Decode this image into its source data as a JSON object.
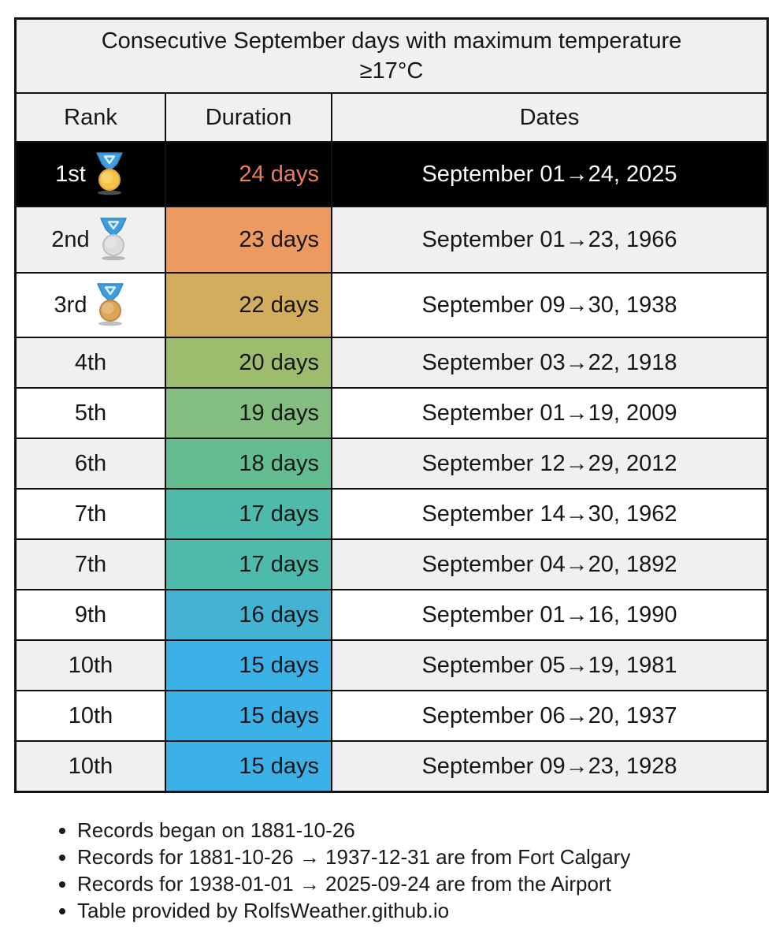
{
  "chart_data": {
    "type": "table",
    "title": "Consecutive September days with maximum temperature ≥17°C",
    "title_lines": [
      "Consecutive September days with maximum temperature",
      "≥17°C"
    ],
    "columns": [
      "Rank",
      "Duration",
      "Dates"
    ],
    "rows": [
      {
        "rank": "1st",
        "medal": "gold",
        "duration": "24 days",
        "duration_days": 24,
        "dates": "September 01→24, 2025",
        "highlight": true,
        "duration_bg": null,
        "duration_text_color": "#ee7b5b"
      },
      {
        "rank": "2nd",
        "medal": "silver",
        "duration": "23 days",
        "duration_days": 23,
        "dates": "September 01→23, 1966",
        "highlight": false,
        "duration_bg": "#ec9a60",
        "duration_text_color": null
      },
      {
        "rank": "3rd",
        "medal": "bronze",
        "duration": "22 days",
        "duration_days": 22,
        "dates": "September 09→30, 1938",
        "highlight": false,
        "duration_bg": "#d2ad5e",
        "duration_text_color": null
      },
      {
        "rank": "4th",
        "medal": null,
        "duration": "20 days",
        "duration_days": 20,
        "dates": "September 03→22, 1918",
        "highlight": false,
        "duration_bg": "#9ebc6e",
        "duration_text_color": null
      },
      {
        "rank": "5th",
        "medal": null,
        "duration": "19 days",
        "duration_days": 19,
        "dates": "September 01→19, 2009",
        "highlight": false,
        "duration_bg": "#84bd80",
        "duration_text_color": null
      },
      {
        "rank": "6th",
        "medal": null,
        "duration": "18 days",
        "duration_days": 18,
        "dates": "September 12→29, 2012",
        "highlight": false,
        "duration_bg": "#63bd90",
        "duration_text_color": null
      },
      {
        "rank": "7th",
        "medal": null,
        "duration": "17 days",
        "duration_days": 17,
        "dates": "September 14→30, 1962",
        "highlight": false,
        "duration_bg": "#4dbaab",
        "duration_text_color": null
      },
      {
        "rank": "7th",
        "medal": null,
        "duration": "17 days",
        "duration_days": 17,
        "dates": "September 04→20, 1892",
        "highlight": false,
        "duration_bg": "#4dbaab",
        "duration_text_color": null
      },
      {
        "rank": "9th",
        "medal": null,
        "duration": "16 days",
        "duration_days": 16,
        "dates": "September 01→16, 1990",
        "highlight": false,
        "duration_bg": "#44b2d2",
        "duration_text_color": null
      },
      {
        "rank": "10th",
        "medal": null,
        "duration": "15 days",
        "duration_days": 15,
        "dates": "September 05→19, 1981",
        "highlight": false,
        "duration_bg": "#3bb1e8",
        "duration_text_color": null
      },
      {
        "rank": "10th",
        "medal": null,
        "duration": "15 days",
        "duration_days": 15,
        "dates": "September 06→20, 1937",
        "highlight": false,
        "duration_bg": "#3bb1e8",
        "duration_text_color": null
      },
      {
        "rank": "10th",
        "medal": null,
        "duration": "15 days",
        "duration_days": 15,
        "dates": "September 09→23, 1928",
        "highlight": false,
        "duration_bg": "#3bb1e8",
        "duration_text_color": null
      }
    ],
    "notes": [
      "Records began on 1881-10-26",
      "Records for 1881-10-26 → 1937-12-31 are from Fort Calgary",
      "Records for 1938-01-01 → 2025-09-24 are from the Airport",
      "Table provided by RolfsWeather.github.io"
    ],
    "legend_position": "none",
    "grid": true
  },
  "colors": {
    "highlight_row_bg": "#000000",
    "highlight_row_text": "#ffffff",
    "highlight_duration_text": "#ee7b5b",
    "stripe_bg": "#f0f0f0",
    "header_bg": "#f0f0f0",
    "border": "#111111"
  },
  "medals": {
    "gold": {
      "ribbon": "#3d9ddd",
      "ribbon_edge": "#2f86c4",
      "ribbon_inner": "#dff0fb",
      "disc": "#f6c445",
      "rim": "#e2a63b",
      "shadow": "#8a8a8a"
    },
    "silver": {
      "ribbon": "#3d9ddd",
      "ribbon_edge": "#2f86c4",
      "ribbon_inner": "#dff0fb",
      "disc": "#dcdcdc",
      "rim": "#c0c0c0",
      "shadow": "#8a8a8a"
    },
    "bronze": {
      "ribbon": "#3d9ddd",
      "ribbon_edge": "#2f86c4",
      "ribbon_inner": "#dff0fb",
      "disc": "#dba659",
      "rim": "#c08a42",
      "shadow": "#8a8a8a"
    }
  }
}
